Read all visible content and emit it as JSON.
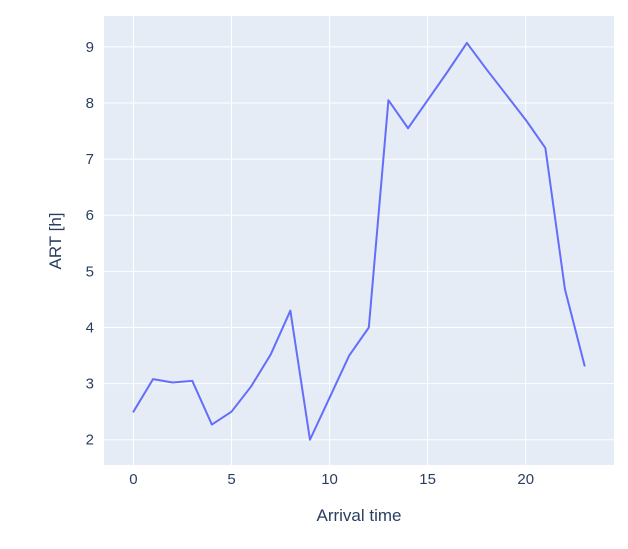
{
  "chart_data": {
    "type": "line",
    "title": "",
    "xlabel": "Arrival time",
    "ylabel": "ART [h]",
    "xlim": [
      -1.5,
      24.5
    ],
    "ylim": [
      1.55,
      9.55
    ],
    "x_ticks": [
      0,
      5,
      10,
      15,
      20
    ],
    "y_ticks": [
      2,
      3,
      4,
      5,
      6,
      7,
      8,
      9
    ],
    "grid": true,
    "colors": {
      "line": "#636efa",
      "plot_bg": "#e5ecf6",
      "grid": "#ffffff",
      "text": "#2a3f5f"
    },
    "series": [
      {
        "x": [
          0,
          1,
          2,
          3,
          4,
          5,
          6,
          7,
          8,
          9,
          10,
          11,
          12,
          13,
          14,
          15,
          16,
          17,
          18,
          19,
          20,
          21,
          22,
          23
        ],
        "y": [
          2.5,
          3.08,
          3.02,
          3.05,
          2.27,
          2.5,
          2.95,
          3.52,
          4.3,
          2.0,
          2.75,
          3.5,
          4.0,
          8.05,
          7.55,
          8.05,
          8.55,
          9.07,
          8.6,
          8.15,
          7.7,
          7.2,
          4.68,
          3.32
        ]
      }
    ]
  }
}
